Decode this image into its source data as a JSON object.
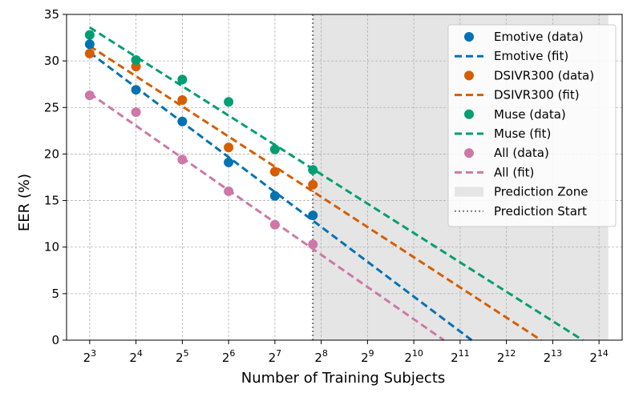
{
  "chart_data": {
    "type": "scatter",
    "title": "",
    "xlabel": "Number of Training Subjects",
    "ylabel": "EER (%)",
    "x_scale": "log2",
    "x_exponent_range": [
      2.5,
      14.5
    ],
    "ylim": [
      0,
      35
    ],
    "grid": true,
    "legend_position": "top-right",
    "x_ticks": [
      {
        "base": "2",
        "exp": "3",
        "value": 3
      },
      {
        "base": "2",
        "exp": "4",
        "value": 4
      },
      {
        "base": "2",
        "exp": "5",
        "value": 5
      },
      {
        "base": "2",
        "exp": "6",
        "value": 6
      },
      {
        "base": "2",
        "exp": "7",
        "value": 7
      },
      {
        "base": "2",
        "exp": "8",
        "value": 8
      },
      {
        "base": "2",
        "exp": "9",
        "value": 9
      },
      {
        "base": "2",
        "exp": "10",
        "value": 10
      },
      {
        "base": "2",
        "exp": "11",
        "value": 11
      },
      {
        "base": "2",
        "exp": "12",
        "value": 12
      },
      {
        "base": "2",
        "exp": "13",
        "value": 13
      },
      {
        "base": "2",
        "exp": "14",
        "value": 14
      }
    ],
    "y_ticks": [
      0,
      5,
      10,
      15,
      20,
      25,
      30,
      35
    ],
    "prediction_zone": {
      "start_log2": 7.82,
      "end_log2": 14.2
    },
    "prediction_start_log2": 7.82,
    "series": [
      {
        "name": "Emotive",
        "data_label": "Emotive (data)",
        "fit_label": "Emotive (fit)",
        "color": "#0072b2",
        "data": [
          [
            3,
            31.8
          ],
          [
            4,
            26.9
          ],
          [
            5,
            23.5
          ],
          [
            6,
            19.1
          ],
          [
            7,
            15.5
          ],
          [
            7.82,
            13.4
          ]
        ],
        "fit": [
          [
            3,
            30.9
          ],
          [
            11.25,
            0
          ]
        ]
      },
      {
        "name": "DSIVR300",
        "data_label": "DSIVR300 (data)",
        "fit_label": "DSIVR300 (fit)",
        "color": "#d55e00",
        "data": [
          [
            3,
            30.8
          ],
          [
            4,
            29.4
          ],
          [
            5,
            25.8
          ],
          [
            6,
            20.7
          ],
          [
            7,
            18.1
          ],
          [
            7.82,
            16.7
          ]
        ],
        "fit": [
          [
            3,
            31.6
          ],
          [
            12.75,
            0
          ]
        ]
      },
      {
        "name": "Muse",
        "data_label": "Muse (data)",
        "fit_label": "Muse (fit)",
        "color": "#009e73",
        "data": [
          [
            3,
            32.8
          ],
          [
            4,
            30.1
          ],
          [
            5,
            28.0
          ],
          [
            6,
            25.6
          ],
          [
            7,
            20.5
          ],
          [
            7.82,
            18.3
          ]
        ],
        "fit": [
          [
            3,
            33.6
          ],
          [
            13.65,
            0
          ]
        ]
      },
      {
        "name": "All",
        "data_label": "All (data)",
        "fit_label": "All (fit)",
        "color": "#cc79a7",
        "data": [
          [
            3,
            26.3
          ],
          [
            4,
            24.5
          ],
          [
            5,
            19.4
          ],
          [
            6,
            16.0
          ],
          [
            7,
            12.4
          ],
          [
            7.82,
            10.3
          ]
        ],
        "fit": [
          [
            3,
            26.5
          ],
          [
            10.65,
            0
          ]
        ]
      }
    ],
    "legend": [
      {
        "label": "Emotive (data)",
        "kind": "marker",
        "color": "#0072b2"
      },
      {
        "label": "Emotive (fit)",
        "kind": "dashed",
        "color": "#0072b2"
      },
      {
        "label": "DSIVR300 (data)",
        "kind": "marker",
        "color": "#d55e00"
      },
      {
        "label": "DSIVR300 (fit)",
        "kind": "dashed",
        "color": "#d55e00"
      },
      {
        "label": "Muse (data)",
        "kind": "marker",
        "color": "#009e73"
      },
      {
        "label": "Muse (fit)",
        "kind": "dashed",
        "color": "#009e73"
      },
      {
        "label": "All (data)",
        "kind": "marker",
        "color": "#cc79a7"
      },
      {
        "label": "All (fit)",
        "kind": "dashed",
        "color": "#cc79a7"
      },
      {
        "label": "Prediction Zone",
        "kind": "patch",
        "color": "#e5e5e5"
      },
      {
        "label": "Prediction Start",
        "kind": "dotted",
        "color": "#808080"
      }
    ]
  }
}
